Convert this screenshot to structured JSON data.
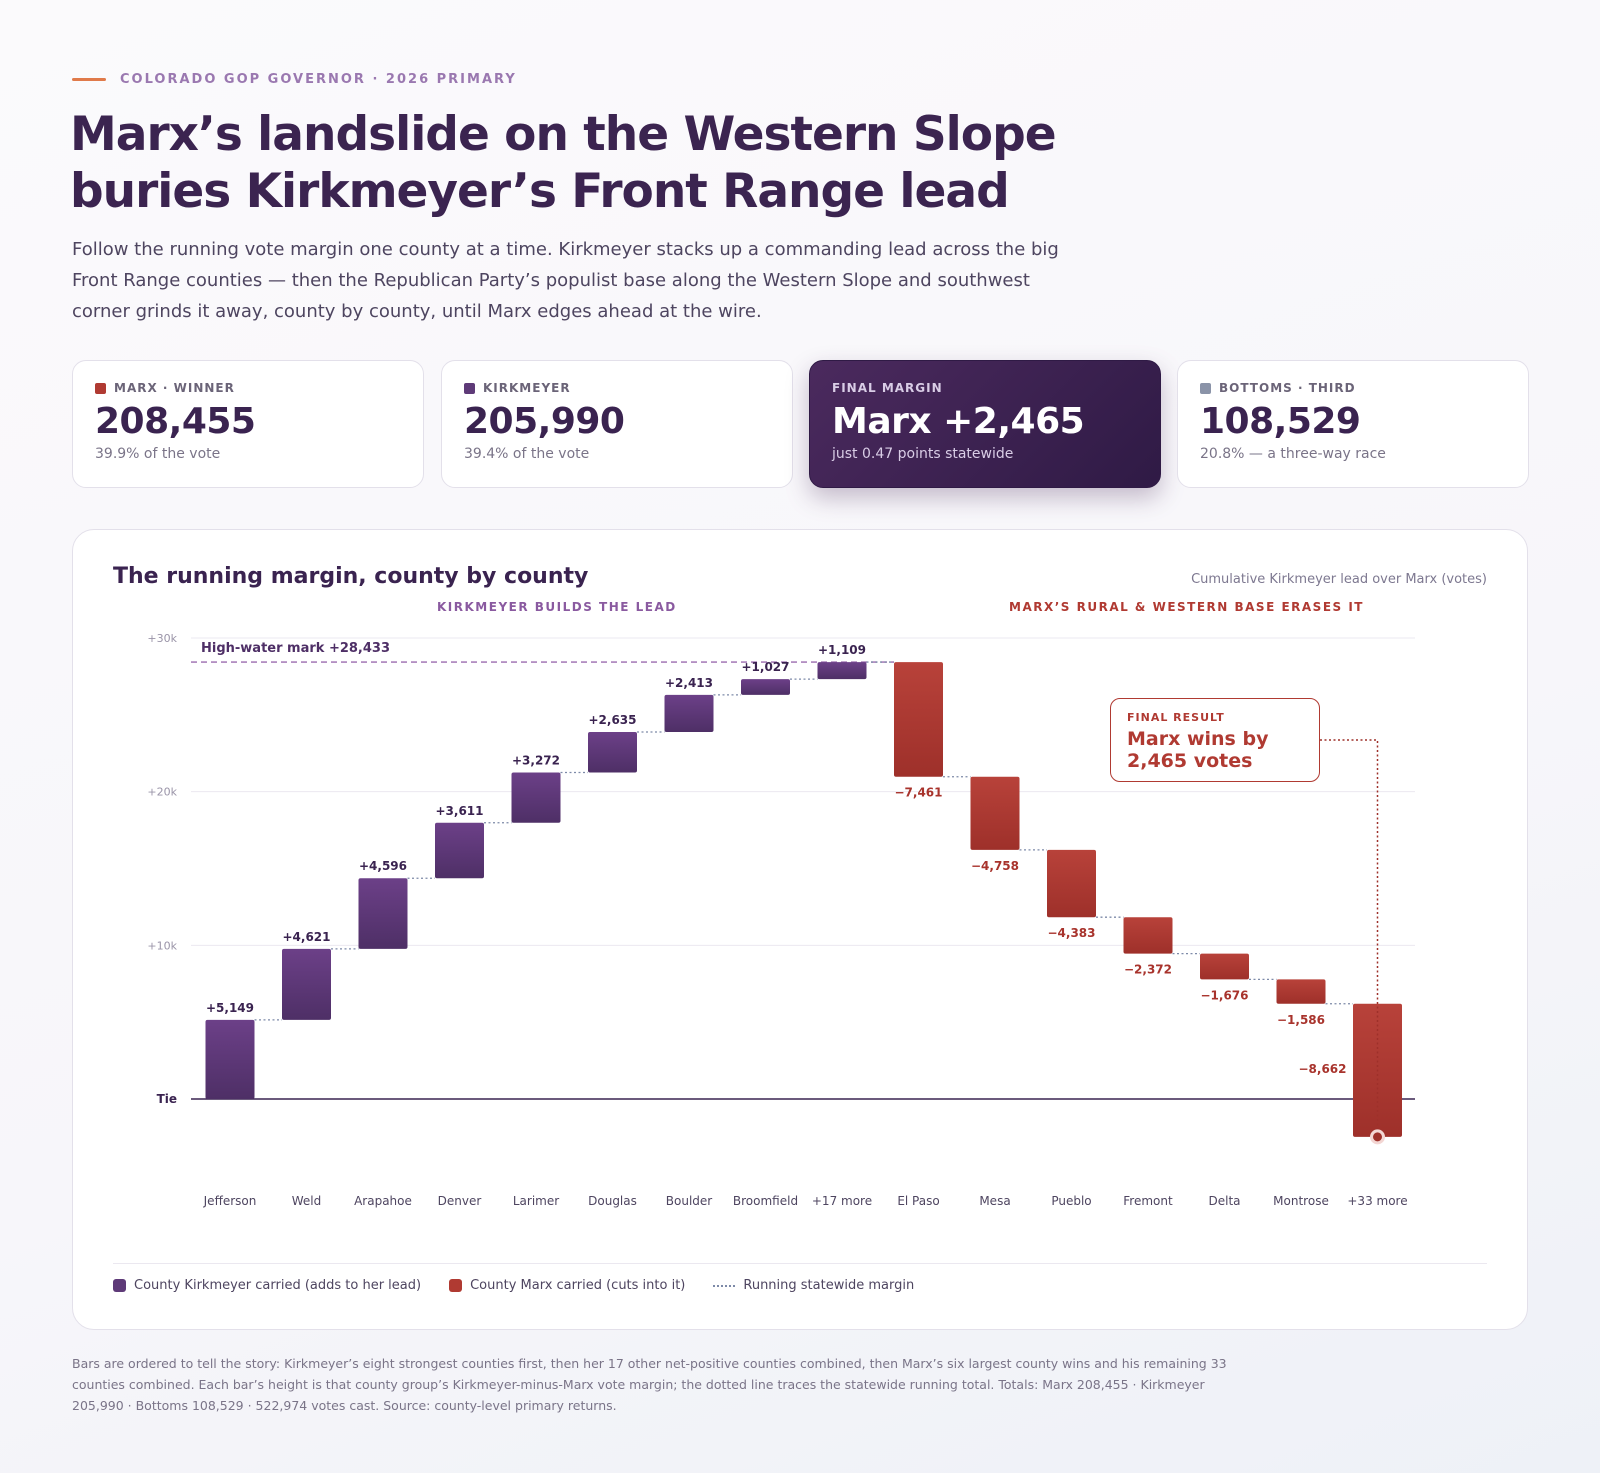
{
  "eyebrow": "COLORADO GOP GOVERNOR · 2026 PRIMARY",
  "headline": {
    "line1": "Marx’s landslide on the Western Slope",
    "line2": "buries Kirkmeyer’s Front Range lead"
  },
  "dek": "Follow the running vote margin one county at a time. Kirkmeyer stacks up a commanding lead across the big Front Range counties — then the Republican Party’s populist base along the Western Slope and southwest corner grinds it away, county by county, until Marx edges ahead at the wire.",
  "stats": [
    {
      "label": "MARX · WINNER",
      "value": "208,455",
      "sub": "39.9% of the vote",
      "swatch": "#b03a32"
    },
    {
      "label": "KIRKMEYER",
      "value": "205,990",
      "sub": "39.4% of the vote",
      "swatch": "#5e3a78"
    },
    {
      "label": "FINAL MARGIN",
      "value": "Marx +2,465",
      "sub": "just 0.47 points statewide"
    },
    {
      "label": "BOTTOMS · THIRD",
      "value": "108,529",
      "sub": "20.8% — a three-way race",
      "swatch": "#8a93a8"
    }
  ],
  "chart_card": {
    "title": "The running margin, county by county",
    "note": "Cumulative Kirkmeyer lead over Marx (votes)",
    "phase_kirkmeyer": "KIRKMEYER BUILDS THE LEAD",
    "phase_marx": "MARX’S RURAL & WESTERN BASE ERASES IT",
    "high_water": "High-water mark  +28,433",
    "callout_label": "FINAL RESULT",
    "callout_line1": "Marx wins by",
    "callout_line2": "2,465 votes"
  },
  "legend": {
    "kirkmeyer": "County Kirkmeyer carried (adds to her lead)",
    "marx": "County Marx carried (cuts into it)",
    "running": "Running statewide margin"
  },
  "footnote": "Bars are ordered to tell the story: Kirkmeyer’s eight strongest counties first, then her 17 other net-positive counties combined, then Marx’s six largest county wins and his remaining 33 counties combined. Each bar’s height is that county group’s Kirkmeyer-minus-Marx vote margin; the dotted line traces the statewide running total. Totals: Marx 208,455 · Kirkmeyer 205,990 · Bottoms 108,529 · 522,974 votes cast. Source: county-level primary returns.",
  "chart_data": {
    "type": "waterfall",
    "title": "The running margin, county by county",
    "ylabel": "Cumulative Kirkmeyer lead over Marx (votes)",
    "ylim": [
      -2465,
      30000
    ],
    "yticks": [
      {
        "value": 0,
        "label": "Tie"
      },
      {
        "value": 10000,
        "label": "+10k"
      },
      {
        "value": 20000,
        "label": "+20k"
      },
      {
        "value": 30000,
        "label": "+30k"
      }
    ],
    "categories": [
      "Jefferson",
      "Weld",
      "Arapahoe",
      "Denver",
      "Larimer",
      "Douglas",
      "Boulder",
      "Broomfield",
      "+17 more",
      "El Paso",
      "Mesa",
      "Pueblo",
      "Fremont",
      "Delta",
      "Montrose",
      "+33 more"
    ],
    "values": [
      5149,
      4621,
      4596,
      3611,
      3272,
      2635,
      2413,
      1027,
      1109,
      -7461,
      -4758,
      -4383,
      -2372,
      -1676,
      -1586,
      -8662
    ],
    "value_labels": [
      "+5,149",
      "+4,621",
      "+4,596",
      "+3,611",
      "+3,272",
      "+2,635",
      "+2,413",
      "+1,027",
      "+1,109",
      "−7,461",
      "−4,758",
      "−4,383",
      "−2,372",
      "−1,676",
      "−1,586",
      "−8,662"
    ],
    "high_water_mark": 28433,
    "final_margin": -2465,
    "colors": {
      "kirkmeyer": "#5e3a78",
      "marx": "#b03a32",
      "running": "#7d8aa8",
      "high_water": "#9a6aae"
    }
  }
}
